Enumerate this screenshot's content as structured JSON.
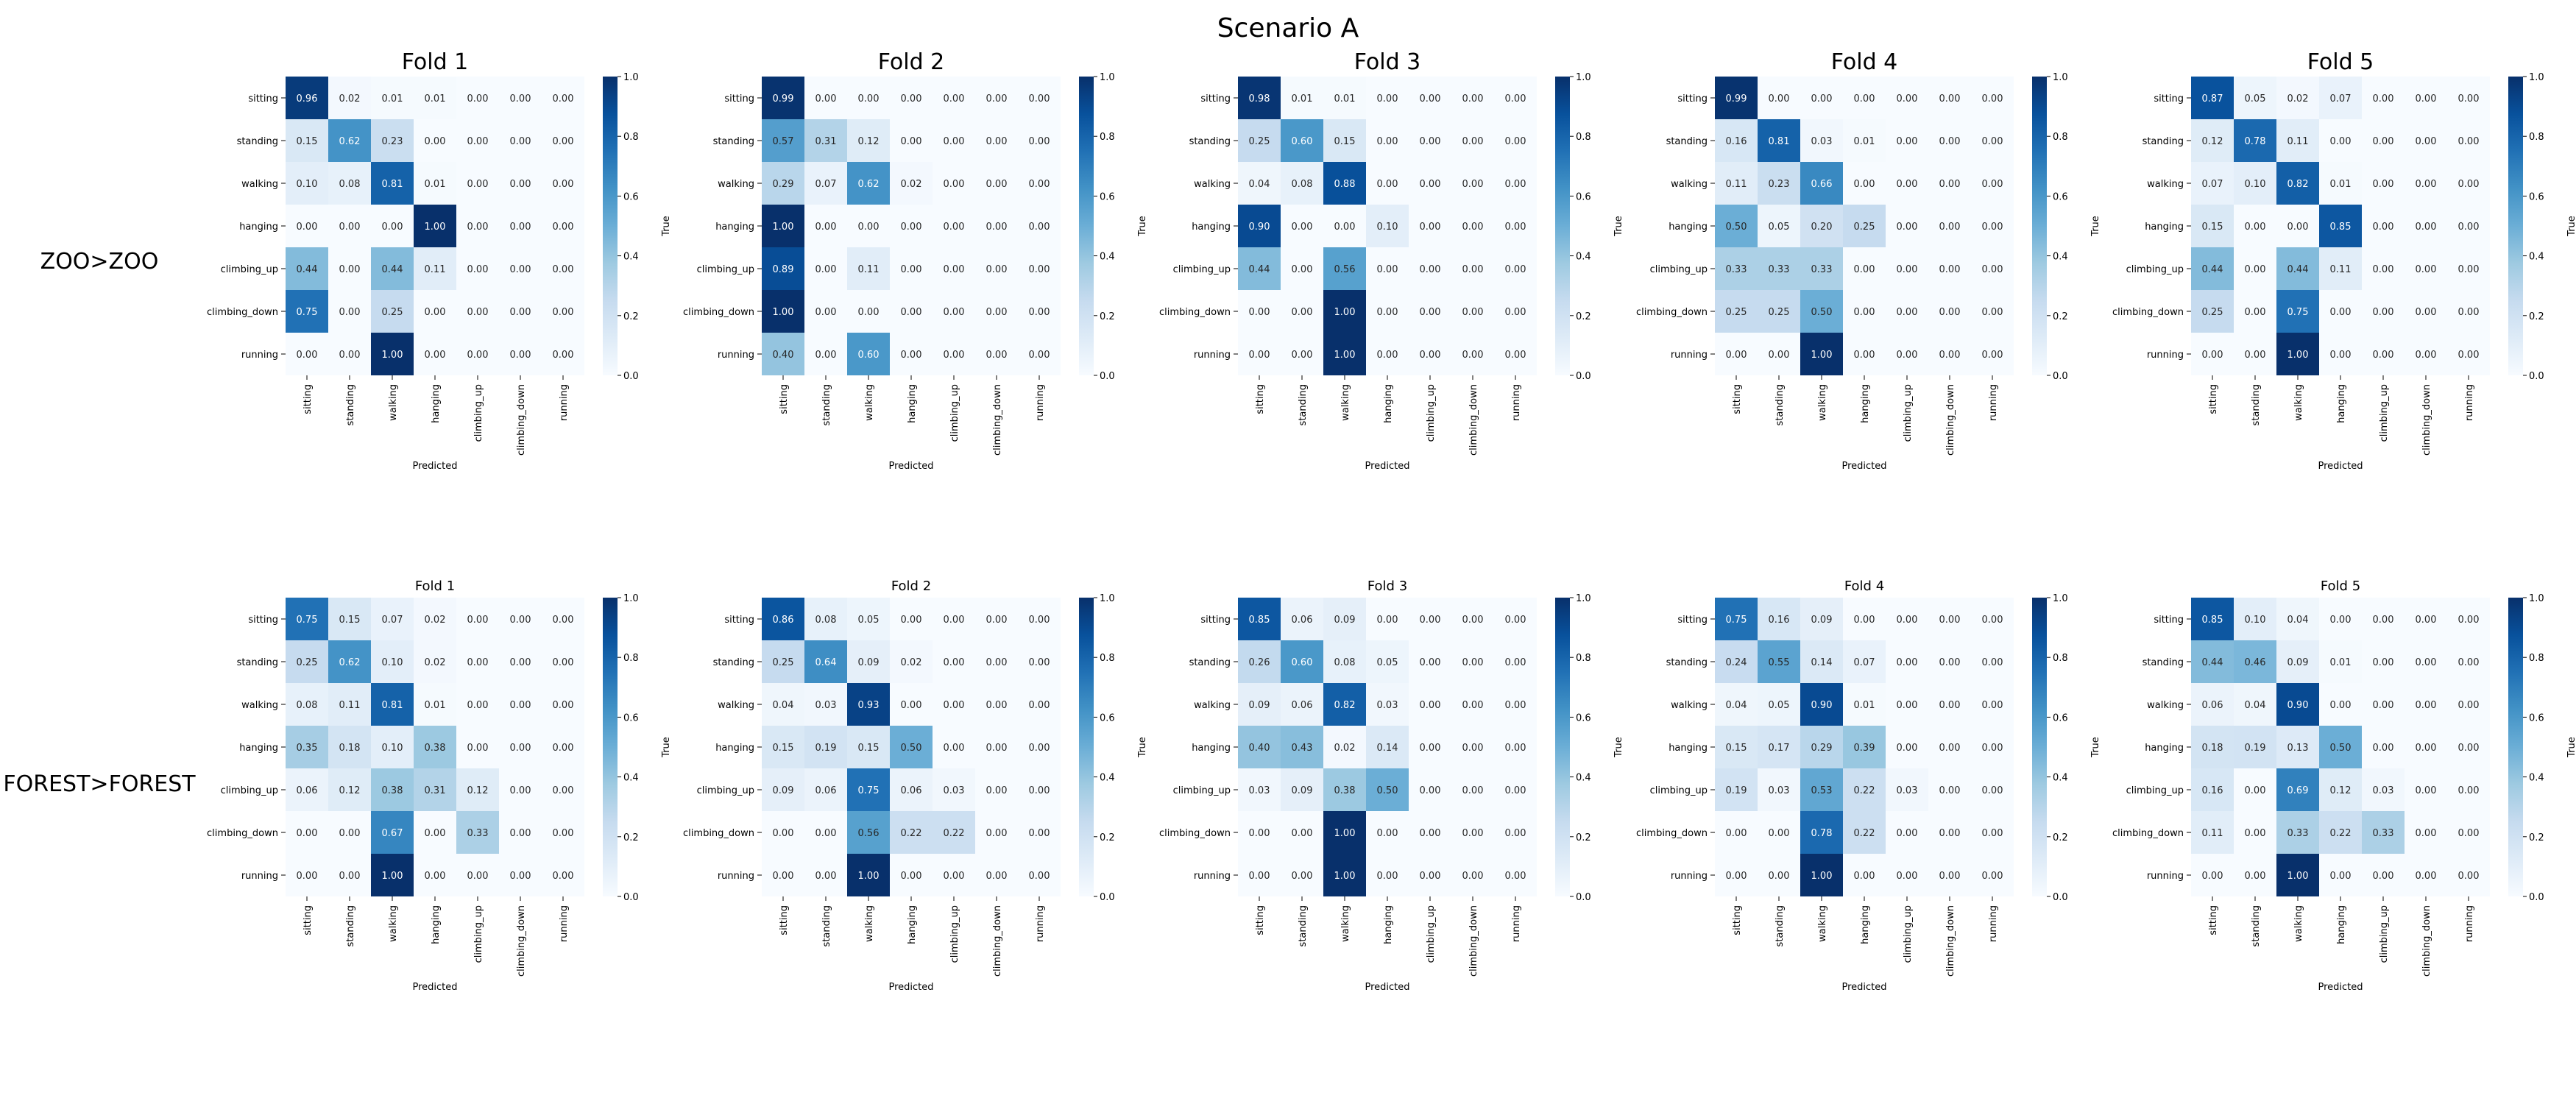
{
  "suptitle": "Scenario A",
  "row_labels": [
    "ZOO>ZOO",
    "FOREST>FOREST"
  ],
  "classes": [
    "sitting",
    "standing",
    "walking",
    "hanging",
    "climbing_up",
    "climbing_down",
    "running"
  ],
  "colorbar_ticks": [
    "0.0",
    "0.2",
    "0.4",
    "0.6",
    "0.8",
    "1.0"
  ],
  "colormap": [
    "#f7fbff",
    "#deebf7",
    "#c6dbef",
    "#9ecae1",
    "#6baed6",
    "#4292c6",
    "#2171b5",
    "#08519c",
    "#08306b"
  ],
  "chart_data": [
    {
      "type": "heatmap",
      "row": "ZOO>ZOO",
      "title": "Fold 1",
      "xlabel": "Predicted",
      "ylabel": "True",
      "clim": [
        0,
        1
      ],
      "matrix": [
        [
          0.96,
          0.02,
          0.01,
          0.01,
          0.0,
          0.0,
          0.0
        ],
        [
          0.15,
          0.62,
          0.23,
          0.0,
          0.0,
          0.0,
          0.0
        ],
        [
          0.1,
          0.08,
          0.81,
          0.01,
          0.0,
          0.0,
          0.0
        ],
        [
          0.0,
          0.0,
          0.0,
          1.0,
          0.0,
          0.0,
          0.0
        ],
        [
          0.44,
          0.0,
          0.44,
          0.11,
          0.0,
          0.0,
          0.0
        ],
        [
          0.75,
          0.0,
          0.25,
          0.0,
          0.0,
          0.0,
          0.0
        ],
        [
          0.0,
          0.0,
          1.0,
          0.0,
          0.0,
          0.0,
          0.0
        ]
      ]
    },
    {
      "type": "heatmap",
      "row": "ZOO>ZOO",
      "title": "Fold 2",
      "xlabel": "Predicted",
      "ylabel": "True",
      "clim": [
        0,
        1
      ],
      "matrix": [
        [
          0.99,
          0.0,
          0.0,
          0.0,
          0.0,
          0.0,
          0.0
        ],
        [
          0.57,
          0.31,
          0.12,
          0.0,
          0.0,
          0.0,
          0.0
        ],
        [
          0.29,
          0.07,
          0.62,
          0.02,
          0.0,
          0.0,
          0.0
        ],
        [
          1.0,
          0.0,
          0.0,
          0.0,
          0.0,
          0.0,
          0.0
        ],
        [
          0.89,
          0.0,
          0.11,
          0.0,
          0.0,
          0.0,
          0.0
        ],
        [
          1.0,
          0.0,
          0.0,
          0.0,
          0.0,
          0.0,
          0.0
        ],
        [
          0.4,
          0.0,
          0.6,
          0.0,
          0.0,
          0.0,
          0.0
        ]
      ]
    },
    {
      "type": "heatmap",
      "row": "ZOO>ZOO",
      "title": "Fold 3",
      "xlabel": "Predicted",
      "ylabel": "True",
      "clim": [
        0,
        1
      ],
      "matrix": [
        [
          0.98,
          0.01,
          0.01,
          0.0,
          0.0,
          0.0,
          0.0
        ],
        [
          0.25,
          0.6,
          0.15,
          0.0,
          0.0,
          0.0,
          0.0
        ],
        [
          0.04,
          0.08,
          0.88,
          0.0,
          0.0,
          0.0,
          0.0
        ],
        [
          0.9,
          0.0,
          0.0,
          0.1,
          0.0,
          0.0,
          0.0
        ],
        [
          0.44,
          0.0,
          0.56,
          0.0,
          0.0,
          0.0,
          0.0
        ],
        [
          0.0,
          0.0,
          1.0,
          0.0,
          0.0,
          0.0,
          0.0
        ],
        [
          0.0,
          0.0,
          1.0,
          0.0,
          0.0,
          0.0,
          0.0
        ]
      ]
    },
    {
      "type": "heatmap",
      "row": "ZOO>ZOO",
      "title": "Fold 4",
      "xlabel": "Predicted",
      "ylabel": "True",
      "clim": [
        0,
        1
      ],
      "matrix": [
        [
          0.99,
          0.0,
          0.0,
          0.0,
          0.0,
          0.0,
          0.0
        ],
        [
          0.16,
          0.81,
          0.03,
          0.01,
          0.0,
          0.0,
          0.0
        ],
        [
          0.11,
          0.23,
          0.66,
          0.0,
          0.0,
          0.0,
          0.0
        ],
        [
          0.5,
          0.05,
          0.2,
          0.25,
          0.0,
          0.0,
          0.0
        ],
        [
          0.33,
          0.33,
          0.33,
          0.0,
          0.0,
          0.0,
          0.0
        ],
        [
          0.25,
          0.25,
          0.5,
          0.0,
          0.0,
          0.0,
          0.0
        ],
        [
          0.0,
          0.0,
          1.0,
          0.0,
          0.0,
          0.0,
          0.0
        ]
      ]
    },
    {
      "type": "heatmap",
      "row": "ZOO>ZOO",
      "title": "Fold 5",
      "xlabel": "Predicted",
      "ylabel": "True",
      "clim": [
        0,
        1
      ],
      "matrix": [
        [
          0.87,
          0.05,
          0.02,
          0.07,
          0.0,
          0.0,
          0.0
        ],
        [
          0.12,
          0.78,
          0.11,
          0.0,
          0.0,
          0.0,
          0.0
        ],
        [
          0.07,
          0.1,
          0.82,
          0.01,
          0.0,
          0.0,
          0.0
        ],
        [
          0.15,
          0.0,
          0.0,
          0.85,
          0.0,
          0.0,
          0.0
        ],
        [
          0.44,
          0.0,
          0.44,
          0.11,
          0.0,
          0.0,
          0.0
        ],
        [
          0.25,
          0.0,
          0.75,
          0.0,
          0.0,
          0.0,
          0.0
        ],
        [
          0.0,
          0.0,
          1.0,
          0.0,
          0.0,
          0.0,
          0.0
        ]
      ]
    },
    {
      "type": "heatmap",
      "row": "FOREST>FOREST",
      "title": "Fold 1",
      "xlabel": "Predicted",
      "ylabel": "True",
      "clim": [
        0,
        1
      ],
      "matrix": [
        [
          0.75,
          0.15,
          0.07,
          0.02,
          0.0,
          0.0,
          0.0
        ],
        [
          0.25,
          0.62,
          0.1,
          0.02,
          0.0,
          0.0,
          0.0
        ],
        [
          0.08,
          0.11,
          0.81,
          0.01,
          0.0,
          0.0,
          0.0
        ],
        [
          0.35,
          0.18,
          0.1,
          0.38,
          0.0,
          0.0,
          0.0
        ],
        [
          0.06,
          0.12,
          0.38,
          0.31,
          0.12,
          0.0,
          0.0
        ],
        [
          0.0,
          0.0,
          0.67,
          0.0,
          0.33,
          0.0,
          0.0
        ],
        [
          0.0,
          0.0,
          1.0,
          0.0,
          0.0,
          0.0,
          0.0
        ]
      ]
    },
    {
      "type": "heatmap",
      "row": "FOREST>FOREST",
      "title": "Fold 2",
      "xlabel": "Predicted",
      "ylabel": "True",
      "clim": [
        0,
        1
      ],
      "matrix": [
        [
          0.86,
          0.08,
          0.05,
          0.0,
          0.0,
          0.0,
          0.0
        ],
        [
          0.25,
          0.64,
          0.09,
          0.02,
          0.0,
          0.0,
          0.0
        ],
        [
          0.04,
          0.03,
          0.93,
          0.0,
          0.0,
          0.0,
          0.0
        ],
        [
          0.15,
          0.19,
          0.15,
          0.5,
          0.0,
          0.0,
          0.0
        ],
        [
          0.09,
          0.06,
          0.75,
          0.06,
          0.03,
          0.0,
          0.0
        ],
        [
          0.0,
          0.0,
          0.56,
          0.22,
          0.22,
          0.0,
          0.0
        ],
        [
          0.0,
          0.0,
          1.0,
          0.0,
          0.0,
          0.0,
          0.0
        ]
      ]
    },
    {
      "type": "heatmap",
      "row": "FOREST>FOREST",
      "title": "Fold 3",
      "xlabel": "Predicted",
      "ylabel": "True",
      "clim": [
        0,
        1
      ],
      "matrix": [
        [
          0.85,
          0.06,
          0.09,
          0.0,
          0.0,
          0.0,
          0.0
        ],
        [
          0.26,
          0.6,
          0.08,
          0.05,
          0.0,
          0.0,
          0.0
        ],
        [
          0.09,
          0.06,
          0.82,
          0.03,
          0.0,
          0.0,
          0.0
        ],
        [
          0.4,
          0.43,
          0.02,
          0.14,
          0.0,
          0.0,
          0.0
        ],
        [
          0.03,
          0.09,
          0.38,
          0.5,
          0.0,
          0.0,
          0.0
        ],
        [
          0.0,
          0.0,
          1.0,
          0.0,
          0.0,
          0.0,
          0.0
        ],
        [
          0.0,
          0.0,
          1.0,
          0.0,
          0.0,
          0.0,
          0.0
        ]
      ]
    },
    {
      "type": "heatmap",
      "row": "FOREST>FOREST",
      "title": "Fold 4",
      "xlabel": "Predicted",
      "ylabel": "True",
      "clim": [
        0,
        1
      ],
      "matrix": [
        [
          0.75,
          0.16,
          0.09,
          0.0,
          0.0,
          0.0,
          0.0
        ],
        [
          0.24,
          0.55,
          0.14,
          0.07,
          0.0,
          0.0,
          0.0
        ],
        [
          0.04,
          0.05,
          0.9,
          0.01,
          0.0,
          0.0,
          0.0
        ],
        [
          0.15,
          0.17,
          0.29,
          0.39,
          0.0,
          0.0,
          0.0
        ],
        [
          0.19,
          0.03,
          0.53,
          0.22,
          0.03,
          0.0,
          0.0
        ],
        [
          0.0,
          0.0,
          0.78,
          0.22,
          0.0,
          0.0,
          0.0
        ],
        [
          0.0,
          0.0,
          1.0,
          0.0,
          0.0,
          0.0,
          0.0
        ]
      ]
    },
    {
      "type": "heatmap",
      "row": "FOREST>FOREST",
      "title": "Fold 5",
      "xlabel": "Predicted",
      "ylabel": "True",
      "clim": [
        0,
        1
      ],
      "matrix": [
        [
          0.85,
          0.1,
          0.04,
          0.0,
          0.0,
          0.0,
          0.0
        ],
        [
          0.44,
          0.46,
          0.09,
          0.01,
          0.0,
          0.0,
          0.0
        ],
        [
          0.06,
          0.04,
          0.9,
          0.0,
          0.0,
          0.0,
          0.0
        ],
        [
          0.18,
          0.19,
          0.13,
          0.5,
          0.0,
          0.0,
          0.0
        ],
        [
          0.16,
          0.0,
          0.69,
          0.12,
          0.03,
          0.0,
          0.0
        ],
        [
          0.11,
          0.0,
          0.33,
          0.22,
          0.33,
          0.0,
          0.0
        ],
        [
          0.0,
          0.0,
          1.0,
          0.0,
          0.0,
          0.0,
          0.0
        ]
      ]
    }
  ]
}
